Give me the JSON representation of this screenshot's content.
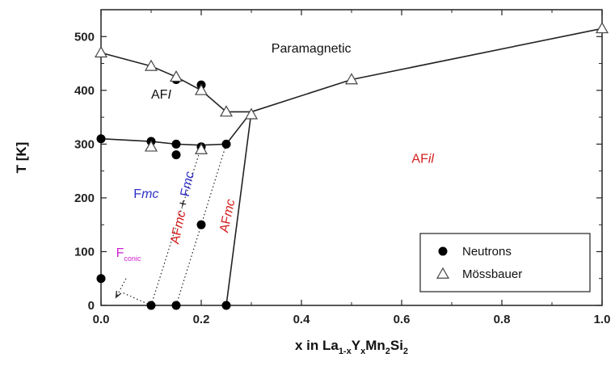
{
  "chart_data": {
    "type": "scatter",
    "xlim": [
      0.0,
      1.0
    ],
    "ylim": [
      0,
      550
    ],
    "x_ticks": [
      "0.0",
      "0.2",
      "0.4",
      "0.6",
      "0.8",
      "1.0"
    ],
    "y_ticks": [
      "0",
      "100",
      "200",
      "300",
      "400",
      "500"
    ],
    "ylabel": "T [K]",
    "xlabel": {
      "parts": [
        {
          "text": "x in La",
          "sub": false
        },
        {
          "text": "1-x",
          "sub": true
        },
        {
          "text": "Y",
          "sub": false
        },
        {
          "text": "x",
          "sub": true
        },
        {
          "text": "Mn",
          "sub": false
        },
        {
          "text": "2",
          "sub": true
        },
        {
          "text": "Si",
          "sub": false
        },
        {
          "text": "2",
          "sub": true
        }
      ]
    },
    "legend": {
      "placement": "lower-right",
      "entries": [
        {
          "name": "Neutrons",
          "marker": "filled-circle"
        },
        {
          "name": "Mössbauer",
          "marker": "open-triangle"
        }
      ]
    },
    "series": [
      {
        "name": "Neutrons",
        "marker": "filled-circle",
        "points": [
          [
            0.0,
            50
          ],
          [
            0.0,
            310
          ],
          [
            0.1,
            305
          ],
          [
            0.15,
            300
          ],
          [
            0.15,
            280
          ],
          [
            0.15,
            420
          ],
          [
            0.2,
            295
          ],
          [
            0.2,
            410
          ],
          [
            0.2,
            150
          ],
          [
            0.25,
            300
          ],
          [
            0.1,
            0
          ],
          [
            0.15,
            0
          ],
          [
            0.25,
            0
          ]
        ]
      },
      {
        "name": "Mössbauer",
        "marker": "open-triangle",
        "points": [
          [
            0.0,
            470
          ],
          [
            0.1,
            445
          ],
          [
            0.15,
            425
          ],
          [
            0.2,
            400
          ],
          [
            0.25,
            360
          ],
          [
            0.3,
            355
          ],
          [
            0.1,
            295
          ],
          [
            0.2,
            290
          ],
          [
            0.5,
            420
          ],
          [
            1.0,
            515
          ]
        ]
      }
    ],
    "phase_boundaries": [
      {
        "style": "solid",
        "points": [
          [
            0.0,
            470
          ],
          [
            0.1,
            445
          ],
          [
            0.15,
            425
          ],
          [
            0.2,
            400
          ],
          [
            0.25,
            360
          ],
          [
            0.3,
            360
          ]
        ]
      },
      {
        "style": "solid",
        "points": [
          [
            0.0,
            310
          ],
          [
            0.1,
            305
          ],
          [
            0.15,
            300
          ],
          [
            0.2,
            298
          ],
          [
            0.25,
            300
          ],
          [
            0.3,
            360
          ]
        ]
      },
      {
        "style": "solid",
        "points": [
          [
            0.3,
            360
          ],
          [
            0.5,
            420
          ],
          [
            1.0,
            515
          ]
        ]
      },
      {
        "style": "solid",
        "points": [
          [
            0.25,
            0
          ],
          [
            0.3,
            360
          ]
        ]
      },
      {
        "style": "dotted",
        "points": [
          [
            0.1,
            0
          ],
          [
            0.2,
            295
          ]
        ]
      },
      {
        "style": "dotted",
        "points": [
          [
            0.15,
            0
          ],
          [
            0.25,
            300
          ]
        ]
      },
      {
        "style": "dotted",
        "points": [
          [
            0.1,
            0
          ],
          [
            0.04,
            25
          ]
        ]
      }
    ],
    "arrows": [
      {
        "style": "dotted",
        "from": [
          0.05,
          50
        ],
        "to": [
          0.03,
          15
        ]
      }
    ],
    "region_labels": [
      {
        "id": "paramagnetic",
        "parts": [
          {
            "text": "Paramagnetic",
            "color": "#111111",
            "italic": false
          }
        ],
        "at": [
          0.34,
          470
        ],
        "rotate": 0
      },
      {
        "id": "afi",
        "parts": [
          {
            "text": "AF",
            "color": "#111111",
            "italic": false
          },
          {
            "text": "I",
            "color": "#111111",
            "italic": true
          }
        ],
        "at": [
          0.1,
          385
        ],
        "rotate": 0
      },
      {
        "id": "afil",
        "parts": [
          {
            "text": "AF",
            "color": "#d42020",
            "italic": false
          },
          {
            "text": "il",
            "color": "#d42020",
            "italic": true
          }
        ],
        "at": [
          0.62,
          265
        ],
        "rotate": 0
      },
      {
        "id": "fmc",
        "parts": [
          {
            "text": "F",
            "color": "#3030c8",
            "italic": false
          },
          {
            "text": "mc",
            "color": "#3030c8",
            "italic": true
          }
        ],
        "at": [
          0.065,
          200
        ],
        "rotate": 0
      },
      {
        "id": "afmc-fmc",
        "parts": [
          {
            "text": "AF",
            "color": "#d42020",
            "italic": false
          },
          {
            "text": "mc",
            "color": "#d42020",
            "italic": true
          },
          {
            "text": " + ",
            "color": "#111111",
            "italic": false
          },
          {
            "text": "F",
            "color": "#3030c8",
            "italic": false
          },
          {
            "text": "mc",
            "color": "#3030c8",
            "italic": true
          }
        ],
        "at": [
          0.17,
          180
        ],
        "rotate": -78
      },
      {
        "id": "afmc",
        "parts": [
          {
            "text": "AF",
            "color": "#d42020",
            "italic": false
          },
          {
            "text": "mc",
            "color": "#d42020",
            "italic": true
          }
        ],
        "at": [
          0.26,
          165
        ],
        "rotate": -78
      },
      {
        "id": "fconic",
        "parts": [
          {
            "text": "F",
            "color": "#d020d0",
            "italic": false
          }
        ],
        "sub": {
          "text": "conic",
          "color": "#d020d0"
        },
        "at": [
          0.03,
          90
        ],
        "rotate": 0
      }
    ]
  }
}
